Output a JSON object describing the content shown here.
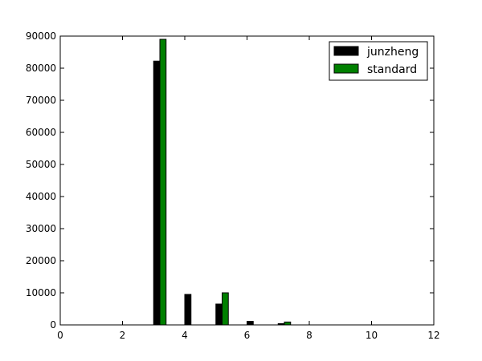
{
  "chart_data": {
    "type": "bar",
    "title": "",
    "xlabel": "",
    "ylabel": "",
    "xlim": [
      0,
      12
    ],
    "ylim": [
      0,
      90000
    ],
    "x_ticks": [
      0,
      2,
      4,
      6,
      8,
      10,
      12
    ],
    "y_ticks": [
      0,
      10000,
      20000,
      30000,
      40000,
      50000,
      60000,
      70000,
      80000,
      90000
    ],
    "grid": false,
    "legend_position": "top-right",
    "bar_width": 0.2,
    "series": [
      {
        "name": "junzheng",
        "color": "#000000",
        "x": [
          0,
          1,
          2,
          3,
          4,
          5,
          6,
          7,
          8,
          9,
          10,
          11
        ],
        "values": [
          0,
          0,
          0,
          82200,
          9500,
          6500,
          1100,
          400,
          0,
          0,
          0,
          0
        ]
      },
      {
        "name": "standard",
        "color": "#008000",
        "x": [
          0.2,
          1.2,
          2.2,
          3.2,
          4.2,
          5.2,
          6.2,
          7.2,
          8.2,
          9.2,
          10.2,
          11.2
        ],
        "values": [
          0,
          0,
          0,
          89000,
          0,
          10000,
          0,
          900,
          0,
          0,
          0,
          0
        ]
      }
    ]
  }
}
